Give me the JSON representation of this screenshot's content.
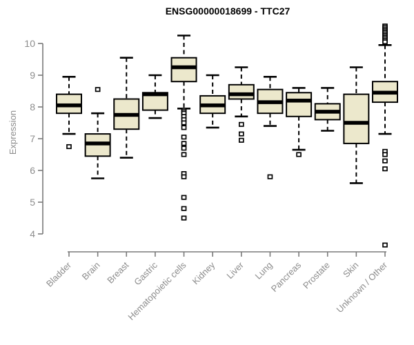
{
  "chart_data": {
    "type": "boxplot",
    "title": "ENSG00000018699 - TTC27",
    "ylabel": "Expression",
    "xlabel": "",
    "yticks": [
      4,
      5,
      6,
      7,
      8,
      9,
      10
    ],
    "ylim": [
      3.5,
      10.7
    ],
    "grid": false,
    "legend": "none",
    "categories": [
      "Bladder",
      "Brain",
      "Breast",
      "Gastric",
      "Hematopoietic cells",
      "Kidney",
      "Liver",
      "Lung",
      "Pancreas",
      "Prostate",
      "Skin",
      "Unknown / Other"
    ],
    "series": [
      {
        "name": "Bladder",
        "whisker_low": 7.15,
        "q1": 7.8,
        "median": 8.05,
        "q3": 8.4,
        "whisker_high": 8.95,
        "outliers": [
          6.75
        ]
      },
      {
        "name": "Brain",
        "whisker_low": 5.75,
        "q1": 6.45,
        "median": 6.85,
        "q3": 7.15,
        "whisker_high": 7.8,
        "outliers": [
          8.55
        ]
      },
      {
        "name": "Breast",
        "whisker_low": 6.4,
        "q1": 7.3,
        "median": 7.75,
        "q3": 8.25,
        "whisker_high": 9.55,
        "outliers": []
      },
      {
        "name": "Gastric",
        "whisker_low": 7.65,
        "q1": 7.9,
        "median": 8.4,
        "q3": 8.45,
        "whisker_high": 9.0,
        "outliers": []
      },
      {
        "name": "Hematopoietic cells",
        "whisker_low": 7.95,
        "q1": 8.8,
        "median": 9.25,
        "q3": 9.55,
        "whisker_high": 10.25,
        "outliers": [
          7.9,
          7.85,
          7.8,
          7.7,
          7.6,
          7.5,
          7.35,
          7.05,
          6.85,
          6.7,
          6.5,
          5.9,
          5.8,
          5.15,
          4.8,
          4.5
        ]
      },
      {
        "name": "Kidney",
        "whisker_low": 7.35,
        "q1": 7.8,
        "median": 8.05,
        "q3": 8.35,
        "whisker_high": 9.0,
        "outliers": []
      },
      {
        "name": "Liver",
        "whisker_low": 7.7,
        "q1": 8.25,
        "median": 8.4,
        "q3": 8.7,
        "whisker_high": 9.25,
        "outliers": [
          7.45,
          7.15,
          6.95
        ]
      },
      {
        "name": "Lung",
        "whisker_low": 7.4,
        "q1": 7.8,
        "median": 8.15,
        "q3": 8.55,
        "whisker_high": 8.95,
        "outliers": [
          5.8
        ]
      },
      {
        "name": "Pancreas",
        "whisker_low": 6.65,
        "q1": 7.7,
        "median": 8.2,
        "q3": 8.45,
        "whisker_high": 8.6,
        "outliers": [
          6.5
        ]
      },
      {
        "name": "Prostate",
        "whisker_low": 7.25,
        "q1": 7.6,
        "median": 7.85,
        "q3": 8.1,
        "whisker_high": 8.6,
        "outliers": []
      },
      {
        "name": "Skin",
        "whisker_low": 5.6,
        "q1": 6.85,
        "median": 7.5,
        "q3": 8.4,
        "whisker_high": 9.25,
        "outliers": []
      },
      {
        "name": "Unknown / Other",
        "whisker_low": 7.15,
        "q1": 8.15,
        "median": 8.45,
        "q3": 8.8,
        "whisker_high": 9.95,
        "outliers": [
          10.55,
          10.5,
          10.45,
          10.4,
          10.35,
          10.3,
          10.25,
          10.2,
          10.15,
          10.1,
          10.05,
          6.6,
          6.5,
          6.3,
          6.05,
          3.65
        ]
      }
    ],
    "colors": {
      "background": "#ffffff",
      "box_fill": "#ECE8CC",
      "box_stroke": "#000000",
      "median": "#000000",
      "whisker": "#000000",
      "outlier": "#000000",
      "axis": "#7a7a7a",
      "tick_label": "#8c8c8c",
      "category_label": "#8c8c8c",
      "title": "#000000"
    }
  }
}
